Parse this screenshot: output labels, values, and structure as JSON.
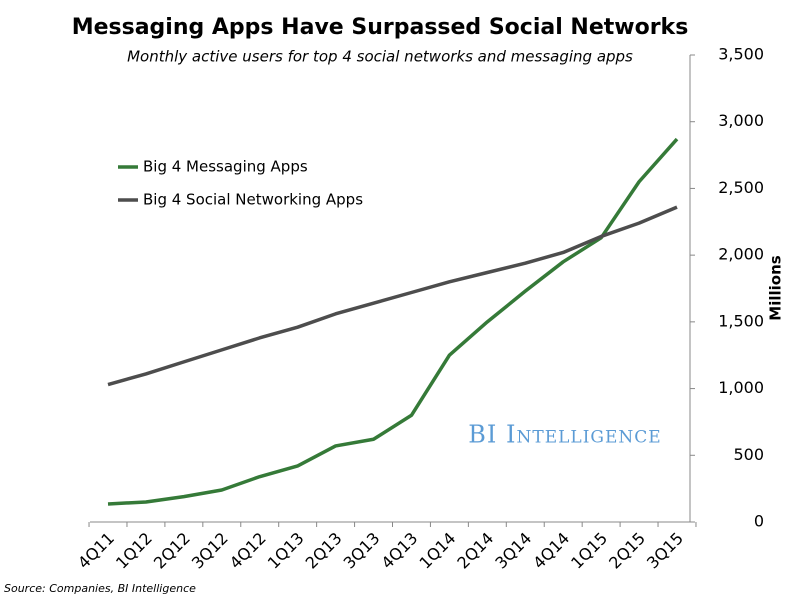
{
  "chart_data": {
    "type": "line",
    "title": "Messaging Apps Have Surpassed Social Networks",
    "subtitle": "Monthly active users for top 4 social networks and messaging apps",
    "y_label": "Millions",
    "source": "Source: Companies, BI Intelligence",
    "watermark": "BI Intelligence",
    "categories": [
      "4Q11",
      "1Q12",
      "2Q12",
      "3Q12",
      "4Q12",
      "1Q13",
      "2Q13",
      "3Q13",
      "4Q13",
      "1Q14",
      "2Q14",
      "3Q14",
      "4Q14",
      "1Q15",
      "2Q15",
      "3Q15"
    ],
    "series": [
      {
        "name": "Big 4 Messaging Apps",
        "color": "#357a38",
        "values": [
          135,
          150,
          190,
          240,
          340,
          420,
          570,
          620,
          800,
          1250,
          1500,
          1730,
          1950,
          2130,
          2550,
          2870
        ]
      },
      {
        "name": "Big 4 Social Networking Apps",
        "color": "#4d4d4d",
        "values": [
          1030,
          1110,
          1200,
          1290,
          1380,
          1460,
          1560,
          1640,
          1720,
          1800,
          1870,
          1940,
          2020,
          2140,
          2240,
          2360
        ]
      }
    ],
    "ylim": [
      0,
      3500
    ],
    "yticks": [
      0,
      500,
      {
        "value": 1000,
        "label": "1,000"
      },
      {
        "value": 1500,
        "label": "1,500"
      },
      {
        "value": 2000,
        "label": "2,000"
      },
      {
        "value": 2500,
        "label": "2,500"
      },
      {
        "value": 3000,
        "label": "3,000"
      },
      {
        "value": 3500,
        "label": "3,500"
      }
    ],
    "y_axis_side": "right",
    "grid": false
  }
}
